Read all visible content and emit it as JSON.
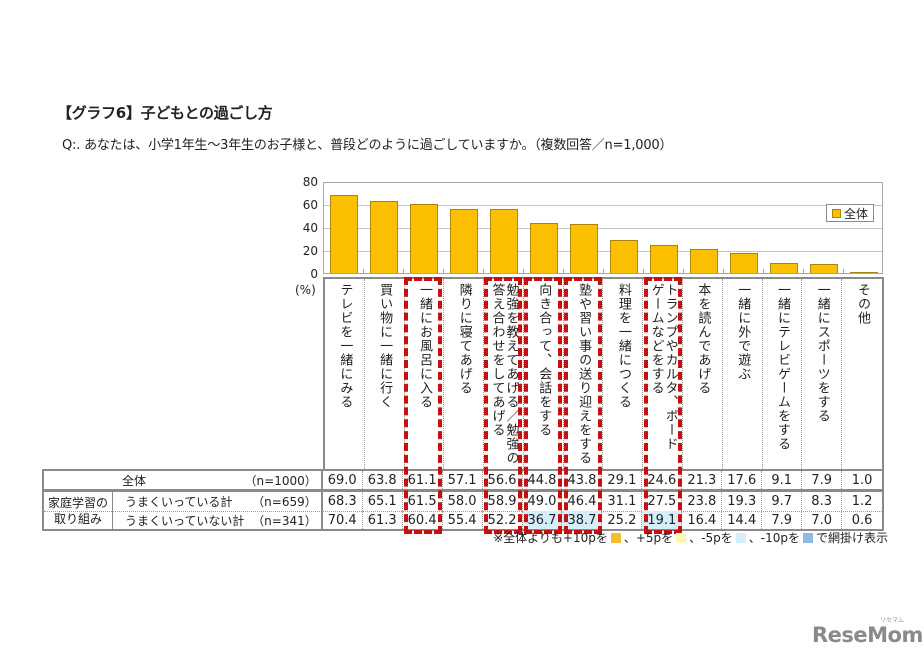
{
  "title": "【グラフ6】子どもとの過ごし方",
  "question": "Q:. あなたは、小学1年生～3年生のお子様と、普段どのように過ごしていますか。（複数回答／n=1,000）",
  "chart": {
    "y_ticks": [
      {
        "label": "80",
        "value": 80
      },
      {
        "label": "60",
        "value": 60
      },
      {
        "label": "40",
        "value": 40
      },
      {
        "label": "20",
        "value": 20
      },
      {
        "label": "0",
        "value": 0
      }
    ],
    "unit_label": "(%)",
    "legend_label": "全体",
    "bar_color": "#fcc000",
    "ymax": 80
  },
  "columns": [
    {
      "lines": [
        "テレビを一緒にみる"
      ],
      "boxed": false
    },
    {
      "lines": [
        "買い物に一緒に行く"
      ],
      "boxed": false
    },
    {
      "lines": [
        "一緒にお風呂に入る"
      ],
      "boxed": true
    },
    {
      "lines": [
        "隣りに寝てあげる"
      ],
      "boxed": false
    },
    {
      "lines": [
        "勉強を教えてあげる／勉強の",
        "答え合わせをしてあげる"
      ],
      "boxed": true
    },
    {
      "lines": [
        "向き合って、会話をする"
      ],
      "boxed": true
    },
    {
      "lines": [
        "塾や習い事の送り迎えをする"
      ],
      "boxed": true
    },
    {
      "lines": [
        "料理を一緒につくる"
      ],
      "boxed": false
    },
    {
      "lines": [
        "トランプやカルタ、ボード",
        "ゲームなどをする"
      ],
      "boxed": true
    },
    {
      "lines": [
        "本を読んであげる"
      ],
      "boxed": false
    },
    {
      "lines": [
        "一緒に外で遊ぶ"
      ],
      "boxed": false
    },
    {
      "lines": [
        "一緒にテレビゲームをする"
      ],
      "boxed": false
    },
    {
      "lines": [
        "一緒にスポーツをする"
      ],
      "boxed": false
    },
    {
      "lines": [
        "その他"
      ],
      "boxed": false
    }
  ],
  "table": {
    "group_lines": [
      "家庭学習の",
      "取り組み"
    ],
    "rows": [
      {
        "label": "全体",
        "n": "（n=1000）",
        "values": [
          "69.0",
          "63.8",
          "61.1",
          "57.1",
          "56.6",
          "44.8",
          "43.8",
          "29.1",
          "24.6",
          "21.3",
          "17.6",
          "9.1",
          "7.9",
          "1.0"
        ],
        "highlights": {}
      },
      {
        "label": "うまくいっている計",
        "n": "（n=659）",
        "values": [
          "68.3",
          "65.1",
          "61.5",
          "58.0",
          "58.9",
          "49.0",
          "46.4",
          "31.1",
          "27.5",
          "23.8",
          "19.3",
          "9.7",
          "8.3",
          "1.2"
        ],
        "highlights": {}
      },
      {
        "label": "うまくいっていない計",
        "n": "（n=341）",
        "values": [
          "70.4",
          "61.3",
          "60.4",
          "55.4",
          "52.2",
          "36.7",
          "38.7",
          "25.2",
          "19.1",
          "16.4",
          "14.4",
          "7.9",
          "7.0",
          "0.6"
        ],
        "highlights": {
          "5": "minus5",
          "6": "minus5",
          "8": "minus5"
        }
      }
    ]
  },
  "footnote": {
    "prefix": "※全体よりも+10pを",
    "plus10_color": "#f5c030",
    "sep1": "、+5pを",
    "plus5_color": "#fff8b8",
    "sep2": "、-5pを",
    "minus5_color": "#d4eefa",
    "sep3": "、-10pを",
    "minus10_color": "#8fb8e8",
    "suffix": "で網掛け表示"
  },
  "logo": {
    "text": "ReseMom",
    "kana": "リセマム"
  },
  "chart_data": {
    "type": "bar",
    "title": "【グラフ6】子どもとの過ごし方",
    "subtitle": "Q:. あなたは、小学1年生～3年生のお子様と、普段どのように過ごしていますか。（複数回答／n=1,000）",
    "xlabel": "",
    "ylabel": "(%)",
    "ylim": [
      0,
      80
    ],
    "yticks": [
      0,
      20,
      40,
      60,
      80
    ],
    "grid": true,
    "legend_position": "upper right",
    "categories": [
      "テレビを一緒にみる",
      "買い物に一緒に行く",
      "一緒にお風呂に入る",
      "隣りに寝てあげる",
      "勉強を教えてあげる／勉強の答え合わせをしてあげる",
      "向き合って、会話をする",
      "塾や習い事の送り迎えをする",
      "料理を一緒につくる",
      "トランプやカルタ、ボードゲームなどをする",
      "本を読んであげる",
      "一緒に外で遊ぶ",
      "一緒にテレビゲームをする",
      "一緒にスポーツをする",
      "その他"
    ],
    "series": [
      {
        "name": "全体",
        "n": 1000,
        "plotted": true,
        "values": [
          69.0,
          63.8,
          61.1,
          57.1,
          56.6,
          44.8,
          43.8,
          29.1,
          24.6,
          21.3,
          17.6,
          9.1,
          7.9,
          1.0
        ]
      },
      {
        "name": "家庭学習の取り組み: うまくいっている計",
        "n": 659,
        "plotted": false,
        "values": [
          68.3,
          65.1,
          61.5,
          58.0,
          58.9,
          49.0,
          46.4,
          31.1,
          27.5,
          23.8,
          19.3,
          9.7,
          8.3,
          1.2
        ]
      },
      {
        "name": "家庭学習の取り組み: うまくいっていない計",
        "n": 341,
        "plotted": false,
        "values": [
          70.4,
          61.3,
          60.4,
          55.4,
          52.2,
          36.7,
          38.7,
          25.2,
          19.1,
          16.4,
          14.4,
          7.9,
          7.0,
          0.6
        ]
      }
    ],
    "annotations": [
      "Red dashed boxes highlight: 一緒にお風呂に入る, 勉強を教えてあげる／勉強の答え合わせをしてあげる, 向き合って、会話をする, 塾や習い事の送り迎えをする, トランプやカルタ、ボードゲームなどをする",
      "※全体よりも+10pを、+5pを、-5pを、-10pを で網掛け表示",
      "-5p shading: うまくいっていない計 — 36.7, 38.7, 19.1"
    ]
  }
}
